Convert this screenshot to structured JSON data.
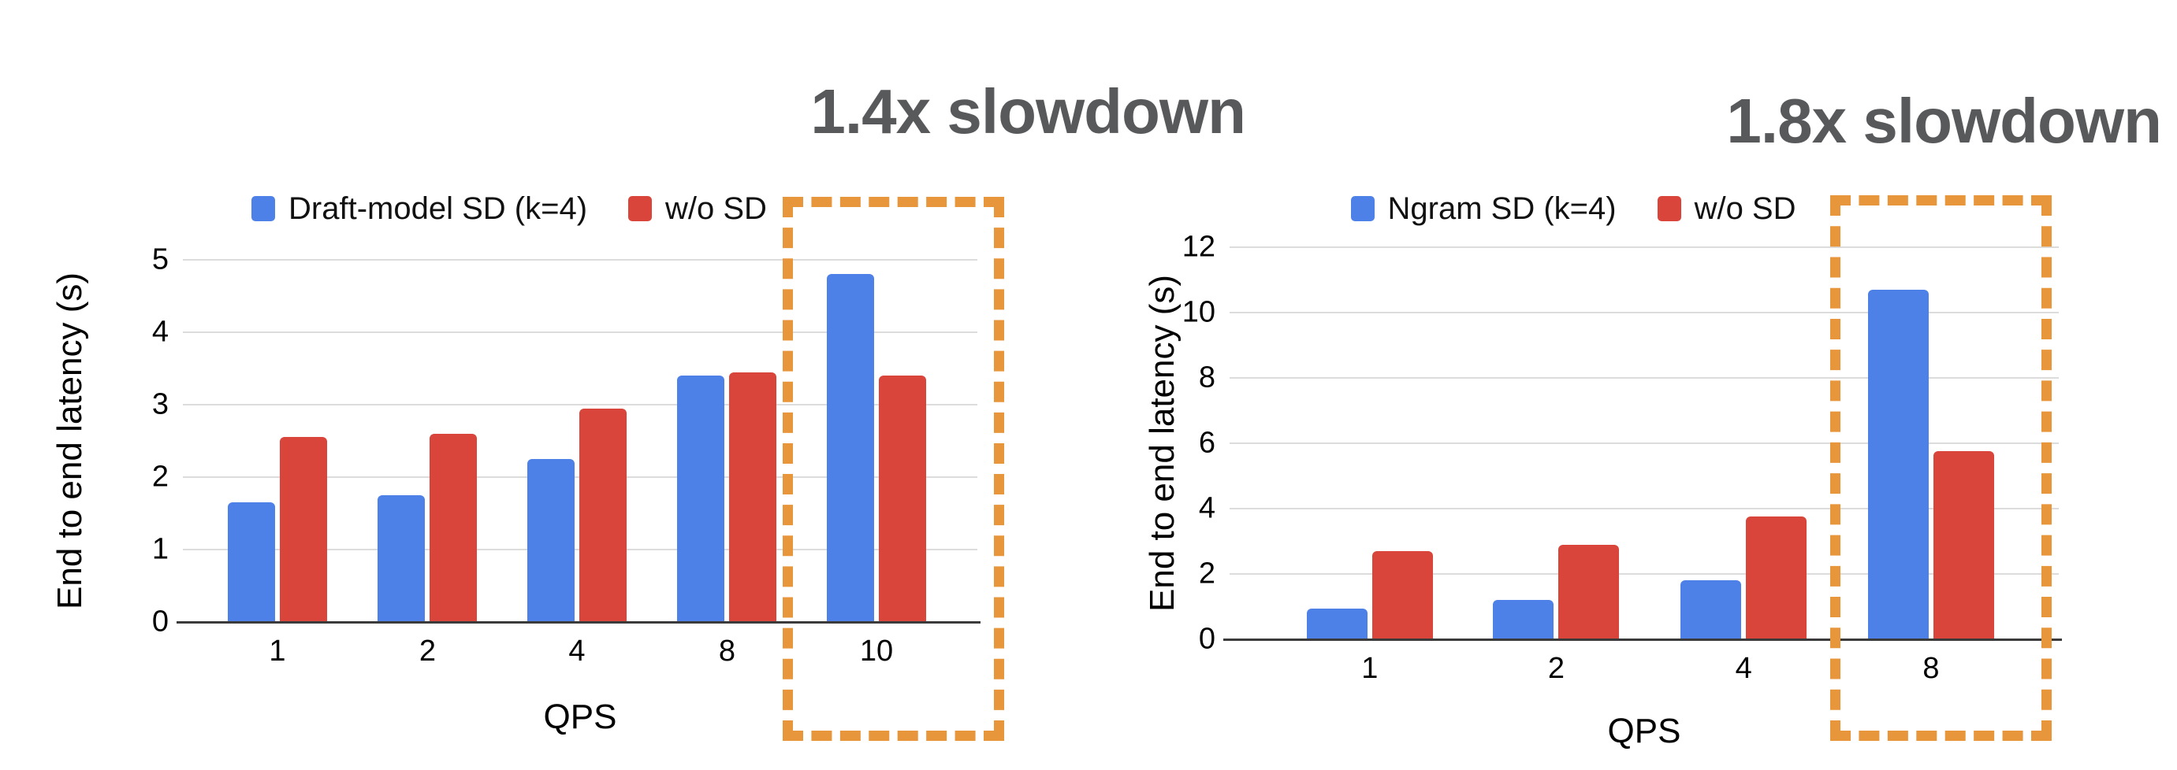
{
  "colors": {
    "blue": "#4E81E8",
    "red": "#D9453A",
    "orange": "#E8963C",
    "annotation_gray": "#58595B",
    "gridline": "#DCDCDC",
    "axis": "#3B3B3B"
  },
  "chart_data": [
    {
      "type": "bar",
      "annotation": "1.4x slowdown",
      "categories": [
        "1",
        "2",
        "4",
        "8",
        "10"
      ],
      "series": [
        {
          "name": "Draft-model SD (k=4)",
          "color_key": "blue",
          "values": [
            1.65,
            1.75,
            2.25,
            3.4,
            4.8
          ]
        },
        {
          "name": "w/o SD",
          "color_key": "red",
          "values": [
            2.55,
            2.6,
            2.95,
            3.45,
            3.4
          ]
        }
      ],
      "xlabel": "QPS",
      "ylabel": "End to end latency (s)",
      "ylim": [
        0,
        5
      ],
      "yticks": [
        0,
        1,
        2,
        3,
        4,
        5
      ],
      "grid": true,
      "legend_position": "top",
      "highlight_category": "10"
    },
    {
      "type": "bar",
      "annotation": "1.8x slowdown",
      "categories": [
        "1",
        "2",
        "4",
        "8"
      ],
      "series": [
        {
          "name": "Ngram SD (k=4)",
          "color_key": "blue",
          "values": [
            0.95,
            1.2,
            1.8,
            10.7
          ]
        },
        {
          "name": "w/o SD",
          "color_key": "red",
          "values": [
            2.7,
            2.9,
            3.75,
            5.75
          ]
        }
      ],
      "xlabel": "QPS",
      "ylabel": "End to end latency (s)",
      "ylim": [
        0,
        12
      ],
      "yticks": [
        0,
        2,
        4,
        6,
        8,
        10,
        12
      ],
      "grid": true,
      "legend_position": "top",
      "highlight_category": "8"
    }
  ]
}
